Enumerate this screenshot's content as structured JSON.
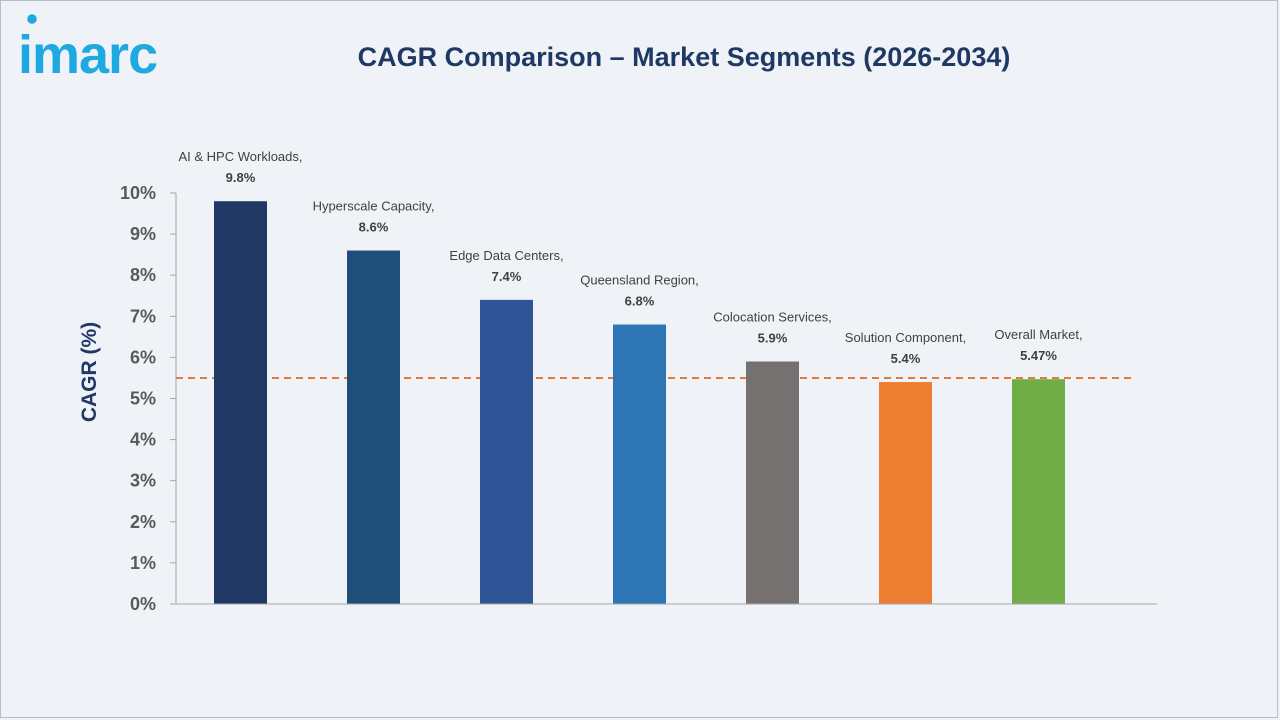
{
  "brand": {
    "logo_text": "imarc",
    "logo_color": "#1fa9e1"
  },
  "chart_data": {
    "type": "bar",
    "title": "CAGR Comparison – Market Segments (2026-2034)",
    "xlabel": "",
    "ylabel": "CAGR (%)",
    "ylim": [
      0,
      10
    ],
    "yticks": [
      0,
      1,
      2,
      3,
      4,
      5,
      6,
      7,
      8,
      9,
      10
    ],
    "ytick_labels": [
      "0%",
      "1%",
      "2%",
      "3%",
      "4%",
      "5%",
      "6%",
      "7%",
      "8%",
      "9%",
      "10%"
    ],
    "grid": false,
    "legend": false,
    "categories": [
      "AI & HPC Workloads",
      "Hyperscale Capacity",
      "Edge Data Centers",
      "Queensland Region",
      "Colocation Services",
      "Solution Component",
      "Overall Market"
    ],
    "values": [
      9.8,
      8.6,
      7.4,
      6.8,
      5.9,
      5.4,
      5.47
    ],
    "category_labels": [
      "AI & HPC Workloads,",
      "Hyperscale Capacity,",
      "Edge Data Centers,",
      "Queensland Region,",
      "Colocation Services,",
      "Solution Component,",
      "Overall Market,"
    ],
    "value_labels": [
      "9.8%",
      "8.6%",
      "7.4%",
      "6.8%",
      "5.9%",
      "5.4%",
      "5.47%"
    ],
    "colors": [
      "#1f3864",
      "#1f4e79",
      "#2f5597",
      "#2e75b6",
      "#767171",
      "#ed7d31",
      "#70ad47"
    ],
    "reference_line": {
      "value": 5.5,
      "style": "dashed",
      "color": "#e07b39"
    }
  }
}
